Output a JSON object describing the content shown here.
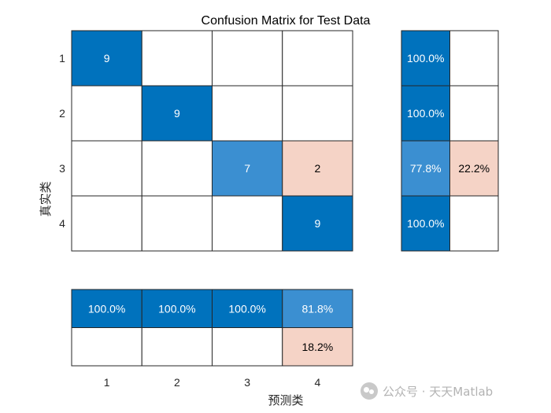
{
  "chart_data": {
    "type": "heatmap",
    "title": "Confusion Matrix for Test Data",
    "ylabel": "真实类",
    "xlabel": "预测类",
    "classes": [
      "1",
      "2",
      "3",
      "4"
    ],
    "matrix": [
      [
        9,
        0,
        0,
        0
      ],
      [
        0,
        9,
        0,
        0
      ],
      [
        0,
        0,
        7,
        2
      ],
      [
        0,
        0,
        0,
        9
      ]
    ],
    "row_summary": {
      "correct": [
        "100.0%",
        "100.0%",
        "77.8%",
        "100.0%"
      ],
      "incorrect": [
        "",
        "",
        "22.2%",
        ""
      ]
    },
    "column_summary": {
      "correct": [
        "100.0%",
        "100.0%",
        "100.0%",
        "81.8%"
      ],
      "incorrect": [
        "",
        "",
        "",
        "18.2%"
      ]
    },
    "colors": {
      "correct_dark": "#0072bd",
      "correct_medium": "#3b8fd1",
      "incorrect_light": "#f5d3c6",
      "empty": "#ffffff",
      "grid": "#262626"
    }
  },
  "watermark": {
    "logo_icon": "wechat-icon",
    "text": "公众号 · 天天Matlab"
  }
}
